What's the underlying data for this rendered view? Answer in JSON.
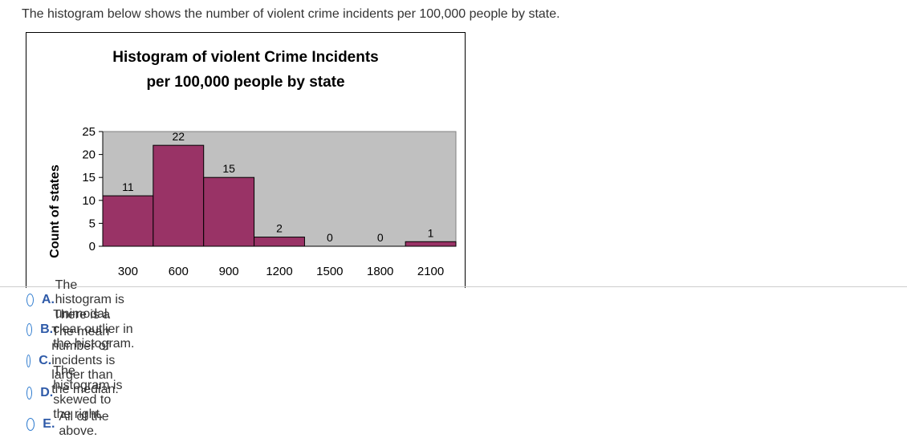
{
  "question": "The histogram below shows the number of violent crime incidents per 100,000 people by state.",
  "colors": {
    "bar_fill": "#993366",
    "plot_bg": "#c0c0c0",
    "option_letter": "#2e5aa8",
    "radio_border": "#2e7bcf"
  },
  "chart_data": {
    "type": "bar",
    "title_line1": "Histogram of violent Crime Incidents",
    "title_line2": "per 100,000 people by state",
    "ylabel": "Count of states",
    "xlabel": "",
    "categories": [
      "300",
      "600",
      "900",
      "1200",
      "1500",
      "1800",
      "2100"
    ],
    "values": [
      11,
      22,
      15,
      2,
      0,
      0,
      1
    ],
    "data_labels": [
      "11",
      "22",
      "15",
      "2",
      "0",
      "0",
      "1"
    ],
    "ylim": [
      0,
      25
    ],
    "yticks": [
      "0",
      "5",
      "10",
      "15",
      "20",
      "25"
    ],
    "grid": false
  },
  "options": [
    {
      "letter": "A.",
      "text": "The histogram is unimodal."
    },
    {
      "letter": "B.",
      "text": "There is a clear outlier in the histogram."
    },
    {
      "letter": "C.",
      "text": "The mean number of incidents is larger than the median."
    },
    {
      "letter": "D.",
      "text": "The histogram is skewed to the right."
    },
    {
      "letter": "E.",
      "text": "All of the above."
    }
  ]
}
